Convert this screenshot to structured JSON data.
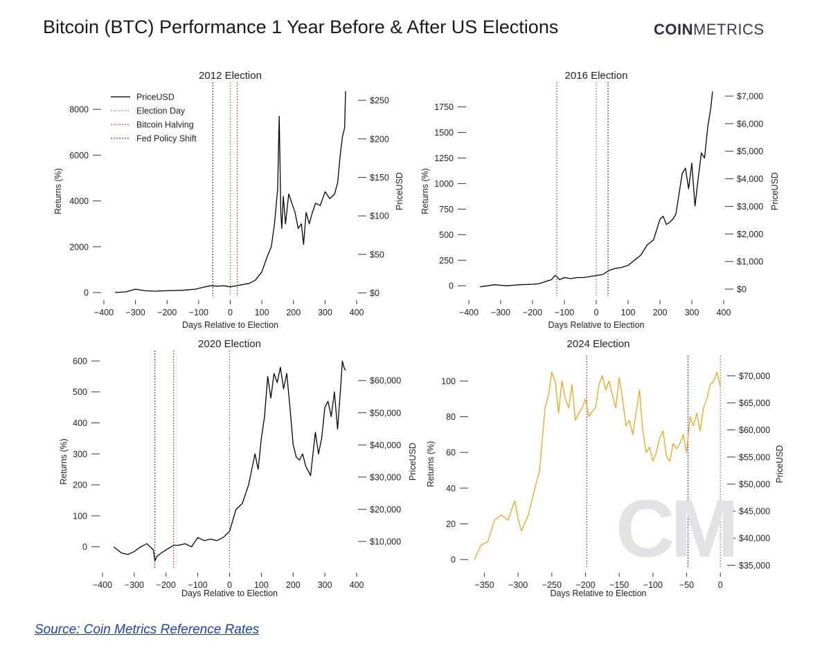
{
  "page": {
    "title": "Bitcoin (BTC) Performance 1 Year Before & After US Elections",
    "brand_bold": "COIN",
    "brand_light": "METRICS",
    "source_text": "Source: Coin Metrics Reference Rates",
    "watermark": "CM"
  },
  "colors": {
    "price_line": "#000000",
    "price_line_2024": "#f2a516",
    "election_day": "#888888",
    "halving": "#e8413c",
    "fed_shift": "#3a3ad8",
    "axis": "#333333"
  },
  "legend": [
    "PriceUSD",
    "Election Day",
    "Bitcoin Halving",
    "Fed Policy Shift"
  ],
  "chart_data": [
    {
      "type": "line",
      "title": "2012 Election",
      "xlabel": "Days Relative to Election",
      "ylabel": "Returns (%)",
      "y2label": "PriceUSD",
      "xlim": [
        -400,
        400
      ],
      "xticks": [
        -400,
        -300,
        -200,
        -100,
        0,
        100,
        200,
        300,
        400
      ],
      "xtick_labels": [
        "-400",
        "-300",
        "-200",
        "-100",
        "0",
        "100",
        "200",
        "300",
        "400"
      ],
      "ylim": [
        -150,
        9000
      ],
      "yticks": [
        0,
        2000,
        4000,
        6000,
        8000
      ],
      "ytick_labels": [
        "0",
        "2000",
        "4000",
        "6000",
        "8000"
      ],
      "y2lim": [
        -4,
        268
      ],
      "y2ticks": [
        0,
        50,
        100,
        150,
        200,
        250
      ],
      "y2tick_labels": [
        "$0",
        "$50",
        "$100",
        "$150",
        "$200",
        "$250"
      ],
      "vlines": [
        {
          "x": 0,
          "kind": "election_day"
        },
        {
          "x": 22,
          "kind": "halving"
        },
        {
          "x": -55,
          "kind": "fed_shift"
        }
      ],
      "legend": "top-left",
      "series": [
        {
          "name": "PriceUSD",
          "x": [
            -365,
            -330,
            -300,
            -270,
            -240,
            -200,
            -150,
            -110,
            -80,
            -60,
            -40,
            -20,
            0,
            20,
            40,
            60,
            80,
            100,
            115,
            130,
            140,
            150,
            155,
            160,
            163,
            168,
            175,
            185,
            195,
            205,
            215,
            225,
            232,
            240,
            250,
            260,
            270,
            285,
            300,
            315,
            330,
            340,
            348,
            355,
            362,
            365
          ],
          "y": [
            0,
            30,
            150,
            80,
            60,
            80,
            100,
            150,
            250,
            300,
            280,
            300,
            250,
            300,
            350,
            400,
            550,
            900,
            1500,
            2000,
            3000,
            4500,
            7700,
            3500,
            2800,
            4200,
            3000,
            4300,
            3900,
            3500,
            2800,
            3000,
            2100,
            3500,
            3000,
            3500,
            3900,
            3800,
            4400,
            4100,
            4300,
            4800,
            6000,
            6800,
            7200,
            8800
          ]
        }
      ]
    },
    {
      "type": "line",
      "title": "2016 Election",
      "xlabel": "Days Relative to Election",
      "ylabel": "Returns (%)",
      "y2label": "PriceUSD",
      "xlim": [
        -400,
        400
      ],
      "xticks": [
        -400,
        -300,
        -200,
        -100,
        0,
        100,
        200,
        300,
        400
      ],
      "xtick_labels": [
        "-400",
        "-300",
        "-200",
        "-100",
        "0",
        "100",
        "200",
        "300",
        "400"
      ],
      "ylim": [
        -100,
        1950
      ],
      "yticks": [
        0,
        250,
        500,
        750,
        1000,
        1250,
        1500,
        1750
      ],
      "ytick_labels": [
        "0",
        "250",
        "500",
        "750",
        "1000",
        "1250",
        "1500",
        "1750"
      ],
      "y2lim": [
        -250,
        7350
      ],
      "y2ticks": [
        0,
        1000,
        2000,
        3000,
        4000,
        5000,
        6000,
        7000
      ],
      "y2tick_labels": [
        "$0",
        "$1,000",
        "$2,000",
        "$3,000",
        "$4,000",
        "$5,000",
        "$6,000",
        "$7,000"
      ],
      "vlines": [
        {
          "x": 0,
          "kind": "election_day"
        },
        {
          "x": -124,
          "kind": "halving"
        },
        {
          "x": 37,
          "kind": "fed_shift"
        }
      ],
      "series": [
        {
          "name": "PriceUSD",
          "x": [
            -365,
            -340,
            -320,
            -300,
            -280,
            -260,
            -240,
            -220,
            -200,
            -180,
            -160,
            -140,
            -130,
            -124,
            -115,
            -100,
            -80,
            -60,
            -40,
            -20,
            0,
            20,
            40,
            60,
            80,
            100,
            120,
            140,
            160,
            180,
            190,
            200,
            210,
            220,
            230,
            240,
            250,
            260,
            270,
            280,
            290,
            300,
            310,
            320,
            330,
            340,
            350,
            360,
            365
          ],
          "y": [
            -10,
            0,
            10,
            5,
            0,
            5,
            10,
            12,
            15,
            20,
            40,
            60,
            100,
            90,
            60,
            80,
            70,
            80,
            80,
            90,
            100,
            110,
            150,
            170,
            180,
            200,
            250,
            300,
            400,
            450,
            550,
            650,
            680,
            600,
            620,
            650,
            700,
            900,
            1100,
            1150,
            950,
            1200,
            780,
            1050,
            1300,
            1250,
            1550,
            1750,
            1900
          ]
        }
      ]
    },
    {
      "type": "line",
      "title": "2020 Election",
      "xlabel": "Days Relative to Election",
      "ylabel": "Returns (%)",
      "y2label": "PriceUSD",
      "xlim": [
        -400,
        400
      ],
      "xticks": [
        -400,
        -300,
        -200,
        -100,
        0,
        100,
        200,
        300,
        400
      ],
      "xtick_labels": [
        "-400",
        "-300",
        "-200",
        "-100",
        "0",
        "100",
        "200",
        "300",
        "400"
      ],
      "ylim": [
        -70,
        620
      ],
      "yticks": [
        0,
        100,
        200,
        300,
        400,
        500,
        600
      ],
      "ytick_labels": [
        "0",
        "100",
        "200",
        "300",
        "400",
        "500",
        "600"
      ],
      "y2lim": [
        1600,
        68000
      ],
      "y2ticks": [
        10000,
        20000,
        30000,
        40000,
        50000,
        60000
      ],
      "y2tick_labels": [
        "$10,000",
        "$20,000",
        "$30,000",
        "$40,000",
        "$50,000",
        "$60,000"
      ],
      "vlines": [
        {
          "x": 0,
          "kind": "election_day"
        },
        {
          "x": -176,
          "kind": "halving"
        },
        {
          "x": -235,
          "kind": "fed_shift"
        }
      ],
      "series": [
        {
          "name": "PriceUSD",
          "x": [
            -365,
            -340,
            -320,
            -300,
            -280,
            -260,
            -240,
            -235,
            -228,
            -215,
            -200,
            -176,
            -160,
            -140,
            -120,
            -100,
            -80,
            -60,
            -40,
            -20,
            0,
            20,
            40,
            60,
            80,
            90,
            100,
            110,
            120,
            130,
            140,
            150,
            160,
            170,
            180,
            190,
            200,
            210,
            220,
            230,
            240,
            255,
            270,
            280,
            290,
            300,
            310,
            320,
            330,
            340,
            350,
            355,
            360,
            365
          ],
          "y": [
            0,
            -20,
            -25,
            -15,
            0,
            10,
            -10,
            -45,
            -30,
            -20,
            -10,
            5,
            5,
            10,
            0,
            30,
            20,
            25,
            20,
            30,
            50,
            120,
            140,
            200,
            300,
            250,
            350,
            420,
            550,
            480,
            560,
            530,
            580,
            510,
            560,
            450,
            330,
            290,
            280,
            300,
            260,
            230,
            370,
            300,
            350,
            450,
            470,
            420,
            500,
            380,
            520,
            600,
            580,
            570
          ]
        }
      ]
    },
    {
      "type": "line",
      "title": "2024 Election",
      "xlabel": "Days Relative to Election",
      "ylabel": "Returns (%)",
      "y2label": "PriceUSD",
      "xlim": [
        -370,
        8
      ],
      "xticks": [
        -350,
        -300,
        -250,
        -200,
        -150,
        -100,
        -50,
        0
      ],
      "xtick_labels": [
        "-350",
        "-300",
        "-250",
        "-200",
        "-150",
        "-100",
        "-50",
        "0"
      ],
      "ylim": [
        -5,
        112
      ],
      "yticks": [
        0,
        20,
        40,
        60,
        80,
        100
      ],
      "ytick_labels": [
        "0",
        "20",
        "40",
        "60",
        "80",
        "100"
      ],
      "y2lim": [
        34400,
        73000
      ],
      "y2ticks": [
        35000,
        40000,
        45000,
        50000,
        55000,
        60000,
        65000,
        70000
      ],
      "y2tick_labels": [
        "$35,000",
        "$40,000",
        "$45,000",
        "$50,000",
        "$55,000",
        "$60,000",
        "$65,000",
        "$70,000"
      ],
      "vlines": [
        {
          "x": 0,
          "kind": "election_day"
        },
        {
          "x": -198,
          "kind": "halving"
        },
        {
          "x": -48,
          "kind": "fed_shift"
        }
      ],
      "series": [
        {
          "name": "PriceUSD",
          "x": [
            -365,
            -355,
            -345,
            -335,
            -325,
            -315,
            -305,
            -300,
            -295,
            -285,
            -275,
            -268,
            -260,
            -255,
            -250,
            -245,
            -240,
            -235,
            -230,
            -225,
            -220,
            -215,
            -210,
            -205,
            -200,
            -195,
            -190,
            -185,
            -180,
            -175,
            -170,
            -165,
            -160,
            -155,
            -150,
            -145,
            -140,
            -135,
            -130,
            -125,
            -120,
            -115,
            -110,
            -105,
            -100,
            -95,
            -90,
            -85,
            -80,
            -75,
            -70,
            -65,
            -60,
            -55,
            -50,
            -45,
            -40,
            -35,
            -30,
            -25,
            -20,
            -15,
            -10,
            -5,
            0
          ],
          "y": [
            0,
            8,
            10,
            22,
            25,
            22,
            33,
            23,
            16,
            25,
            40,
            50,
            85,
            92,
            105,
            100,
            82,
            100,
            90,
            85,
            98,
            78,
            82,
            85,
            90,
            80,
            83,
            85,
            98,
            103,
            95,
            100,
            92,
            85,
            102,
            90,
            75,
            78,
            70,
            82,
            95,
            72,
            60,
            63,
            55,
            60,
            68,
            72,
            58,
            55,
            65,
            62,
            65,
            70,
            60,
            80,
            75,
            82,
            72,
            85,
            90,
            98,
            100,
            105,
            97
          ]
        }
      ]
    }
  ]
}
